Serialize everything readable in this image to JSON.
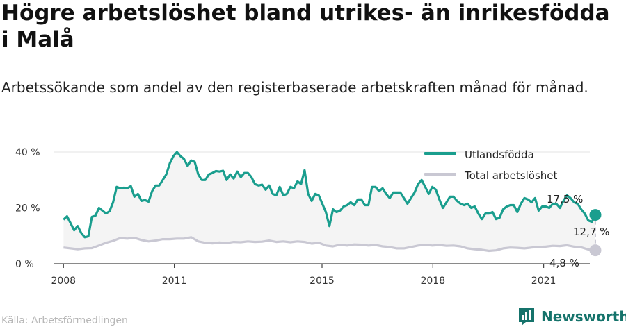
{
  "header": {
    "title": "Högre arbetslöshet bland utrikes- än inrikesfödda i Malå",
    "subtitle": "Arbetssökande som andel av den registerbaserade arbetskraften månad för månad."
  },
  "footer": {
    "source": "Källa: Arbetsförmedlingen",
    "brand": "Newsworthy"
  },
  "colors": {
    "utlandsfodda": "#1a9e8e",
    "total": "#c9c8d3",
    "area": "#f4f4f4",
    "grid": "#e3e3e3",
    "gap": "#c9c8d3"
  },
  "chart_data": {
    "type": "line",
    "x_range": [
      2007.75,
      2022.25
    ],
    "ylim": [
      0,
      40
    ],
    "y_ticks": [
      {
        "value": 0,
        "label": "0 %"
      },
      {
        "value": 20,
        "label": "20 %"
      },
      {
        "value": 40,
        "label": "40 %"
      }
    ],
    "x_ticks": [
      {
        "value": 2008,
        "label": "2008"
      },
      {
        "value": 2011,
        "label": "2011"
      },
      {
        "value": 2015,
        "label": "2015"
      },
      {
        "value": 2018,
        "label": "2018"
      },
      {
        "value": 2021,
        "label": "2021"
      }
    ],
    "grid": true,
    "legend_position": "top-right",
    "series": [
      {
        "name": "Utlandsfödda",
        "key": "utlandsfodda",
        "points": [
          [
            2008.0,
            15.8
          ],
          [
            2008.1,
            17.0
          ],
          [
            2008.2,
            14.5
          ],
          [
            2008.3,
            12.0
          ],
          [
            2008.4,
            13.5
          ],
          [
            2008.5,
            11.0
          ],
          [
            2008.6,
            9.5
          ],
          [
            2008.7,
            9.8
          ],
          [
            2008.8,
            16.8
          ],
          [
            2008.9,
            17.2
          ],
          [
            2009.0,
            20.0
          ],
          [
            2009.1,
            19.0
          ],
          [
            2009.2,
            18.0
          ],
          [
            2009.3,
            18.8
          ],
          [
            2009.4,
            22.0
          ],
          [
            2009.5,
            27.5
          ],
          [
            2009.6,
            27.0
          ],
          [
            2009.7,
            27.2
          ],
          [
            2009.8,
            27.0
          ],
          [
            2009.9,
            27.8
          ],
          [
            2010.0,
            24.0
          ],
          [
            2010.1,
            25.0
          ],
          [
            2010.2,
            22.5
          ],
          [
            2010.3,
            22.8
          ],
          [
            2010.4,
            22.2
          ],
          [
            2010.5,
            26.0
          ],
          [
            2010.6,
            28.0
          ],
          [
            2010.7,
            28.0
          ],
          [
            2010.8,
            30.0
          ],
          [
            2010.9,
            32.0
          ],
          [
            2011.0,
            36.0
          ],
          [
            2011.1,
            38.5
          ],
          [
            2011.2,
            40.0
          ],
          [
            2011.3,
            38.5
          ],
          [
            2011.4,
            37.5
          ],
          [
            2011.5,
            35.0
          ],
          [
            2011.6,
            37.0
          ],
          [
            2011.7,
            36.5
          ],
          [
            2011.8,
            32.0
          ],
          [
            2011.9,
            30.0
          ],
          [
            2012.0,
            30.0
          ],
          [
            2012.1,
            32.0
          ],
          [
            2012.2,
            32.5
          ],
          [
            2012.3,
            33.2
          ],
          [
            2012.4,
            33.0
          ],
          [
            2012.5,
            33.3
          ],
          [
            2012.6,
            30.0
          ],
          [
            2012.7,
            32.0
          ],
          [
            2012.8,
            30.5
          ],
          [
            2012.9,
            33.0
          ],
          [
            2013.0,
            31.0
          ],
          [
            2013.1,
            32.5
          ],
          [
            2013.2,
            32.5
          ],
          [
            2013.3,
            31.0
          ],
          [
            2013.4,
            28.5
          ],
          [
            2013.5,
            28.0
          ],
          [
            2013.6,
            28.3
          ],
          [
            2013.7,
            26.5
          ],
          [
            2013.8,
            28.0
          ],
          [
            2013.9,
            25.0
          ],
          [
            2014.0,
            24.5
          ],
          [
            2014.1,
            27.5
          ],
          [
            2014.2,
            24.5
          ],
          [
            2014.3,
            25.0
          ],
          [
            2014.4,
            27.5
          ],
          [
            2014.5,
            27.0
          ],
          [
            2014.6,
            29.5
          ],
          [
            2014.7,
            28.5
          ],
          [
            2014.8,
            33.5
          ],
          [
            2014.9,
            25.0
          ],
          [
            2015.0,
            22.5
          ],
          [
            2015.1,
            25.0
          ],
          [
            2015.2,
            24.5
          ],
          [
            2015.3,
            21.5
          ],
          [
            2015.4,
            18.5
          ],
          [
            2015.5,
            13.5
          ],
          [
            2015.6,
            19.5
          ],
          [
            2015.7,
            18.5
          ],
          [
            2015.8,
            19.0
          ],
          [
            2015.9,
            20.5
          ],
          [
            2016.0,
            21.0
          ],
          [
            2016.1,
            22.0
          ],
          [
            2016.2,
            21.0
          ],
          [
            2016.3,
            23.0
          ],
          [
            2016.4,
            23.0
          ],
          [
            2016.5,
            21.0
          ],
          [
            2016.6,
            21.0
          ],
          [
            2016.7,
            27.5
          ],
          [
            2016.8,
            27.5
          ],
          [
            2016.9,
            26.0
          ],
          [
            2017.0,
            27.0
          ],
          [
            2017.1,
            25.0
          ],
          [
            2017.2,
            23.5
          ],
          [
            2017.3,
            25.5
          ],
          [
            2017.4,
            25.5
          ],
          [
            2017.5,
            25.5
          ],
          [
            2017.6,
            23.5
          ],
          [
            2017.7,
            21.5
          ],
          [
            2017.8,
            23.5
          ],
          [
            2017.9,
            25.5
          ],
          [
            2018.0,
            28.5
          ],
          [
            2018.1,
            30.0
          ],
          [
            2018.2,
            27.5
          ],
          [
            2018.3,
            25.0
          ],
          [
            2018.4,
            27.5
          ],
          [
            2018.5,
            26.5
          ],
          [
            2018.6,
            23.0
          ],
          [
            2018.7,
            20.0
          ],
          [
            2018.8,
            22.0
          ],
          [
            2018.9,
            24.0
          ],
          [
            2019.0,
            24.0
          ],
          [
            2019.1,
            22.5
          ],
          [
            2019.2,
            21.5
          ],
          [
            2019.3,
            21.0
          ],
          [
            2019.4,
            21.5
          ],
          [
            2019.5,
            20.0
          ],
          [
            2019.6,
            20.5
          ],
          [
            2019.7,
            18.0
          ],
          [
            2019.8,
            16.0
          ],
          [
            2019.9,
            18.0
          ],
          [
            2020.0,
            18.0
          ],
          [
            2020.1,
            18.5
          ],
          [
            2020.2,
            16.0
          ],
          [
            2020.3,
            16.5
          ],
          [
            2020.4,
            19.5
          ],
          [
            2020.5,
            20.5
          ],
          [
            2020.6,
            21.0
          ],
          [
            2020.7,
            21.0
          ],
          [
            2020.8,
            18.5
          ],
          [
            2020.9,
            21.5
          ],
          [
            2021.0,
            23.5
          ],
          [
            2021.1,
            23.0
          ],
          [
            2021.2,
            22.0
          ],
          [
            2021.3,
            23.5
          ],
          [
            2021.4,
            19.0
          ],
          [
            2021.5,
            20.5
          ],
          [
            2021.6,
            20.5
          ],
          [
            2021.7,
            20.0
          ],
          [
            2021.8,
            21.5
          ],
          [
            2021.9,
            21.5
          ],
          [
            2022.0,
            20.0
          ],
          [
            2022.1,
            22.5
          ],
          [
            2022.2,
            24.5
          ],
          [
            2022.3,
            23.5
          ],
          [
            2022.4,
            22.0
          ],
          [
            2022.5,
            21.5
          ],
          [
            2022.6,
            19.5
          ],
          [
            2022.7,
            18.0
          ],
          [
            2022.8,
            15.5
          ],
          [
            2022.9,
            15.0
          ],
          [
            2023.0,
            17.5
          ]
        ]
      },
      {
        "name": "Total arbetslöshet",
        "key": "total",
        "points": [
          [
            2008.0,
            5.8
          ],
          [
            2008.2,
            5.5
          ],
          [
            2008.4,
            5.2
          ],
          [
            2008.6,
            5.5
          ],
          [
            2008.8,
            5.6
          ],
          [
            2009.0,
            6.5
          ],
          [
            2009.2,
            7.5
          ],
          [
            2009.4,
            8.2
          ],
          [
            2009.6,
            9.2
          ],
          [
            2009.8,
            9.0
          ],
          [
            2010.0,
            9.3
          ],
          [
            2010.2,
            8.5
          ],
          [
            2010.4,
            8.0
          ],
          [
            2010.6,
            8.3
          ],
          [
            2010.8,
            8.8
          ],
          [
            2011.0,
            8.8
          ],
          [
            2011.2,
            9.0
          ],
          [
            2011.4,
            9.0
          ],
          [
            2011.6,
            9.5
          ],
          [
            2011.8,
            8.0
          ],
          [
            2012.0,
            7.5
          ],
          [
            2012.2,
            7.3
          ],
          [
            2012.4,
            7.6
          ],
          [
            2012.6,
            7.4
          ],
          [
            2012.8,
            7.8
          ],
          [
            2013.0,
            7.7
          ],
          [
            2013.2,
            8.0
          ],
          [
            2013.4,
            7.8
          ],
          [
            2013.6,
            7.9
          ],
          [
            2013.8,
            8.3
          ],
          [
            2014.0,
            7.8
          ],
          [
            2014.2,
            8.0
          ],
          [
            2014.4,
            7.7
          ],
          [
            2014.6,
            8.0
          ],
          [
            2014.8,
            7.8
          ],
          [
            2015.0,
            7.2
          ],
          [
            2015.2,
            7.5
          ],
          [
            2015.4,
            6.5
          ],
          [
            2015.6,
            6.2
          ],
          [
            2015.8,
            6.8
          ],
          [
            2016.0,
            6.5
          ],
          [
            2016.2,
            6.9
          ],
          [
            2016.4,
            6.8
          ],
          [
            2016.6,
            6.5
          ],
          [
            2016.8,
            6.7
          ],
          [
            2017.0,
            6.2
          ],
          [
            2017.2,
            6.0
          ],
          [
            2017.4,
            5.5
          ],
          [
            2017.6,
            5.5
          ],
          [
            2017.8,
            6.0
          ],
          [
            2018.0,
            6.5
          ],
          [
            2018.2,
            6.8
          ],
          [
            2018.4,
            6.5
          ],
          [
            2018.6,
            6.7
          ],
          [
            2018.8,
            6.4
          ],
          [
            2019.0,
            6.5
          ],
          [
            2019.2,
            6.2
          ],
          [
            2019.4,
            5.5
          ],
          [
            2019.6,
            5.2
          ],
          [
            2019.8,
            5.0
          ],
          [
            2020.0,
            4.6
          ],
          [
            2020.2,
            4.8
          ],
          [
            2020.4,
            5.5
          ],
          [
            2020.6,
            5.8
          ],
          [
            2020.8,
            5.7
          ],
          [
            2021.0,
            5.5
          ],
          [
            2021.2,
            5.8
          ],
          [
            2021.4,
            6.0
          ],
          [
            2021.6,
            6.1
          ],
          [
            2021.8,
            6.4
          ],
          [
            2022.0,
            6.3
          ],
          [
            2022.2,
            6.6
          ],
          [
            2022.4,
            6.1
          ],
          [
            2022.6,
            5.9
          ],
          [
            2022.8,
            5.1
          ],
          [
            2023.0,
            4.8
          ]
        ]
      }
    ],
    "annotations": {
      "last_utlandsfodda": "17,5 %",
      "gap": "12,7 %",
      "last_total": "4,8 %"
    }
  }
}
